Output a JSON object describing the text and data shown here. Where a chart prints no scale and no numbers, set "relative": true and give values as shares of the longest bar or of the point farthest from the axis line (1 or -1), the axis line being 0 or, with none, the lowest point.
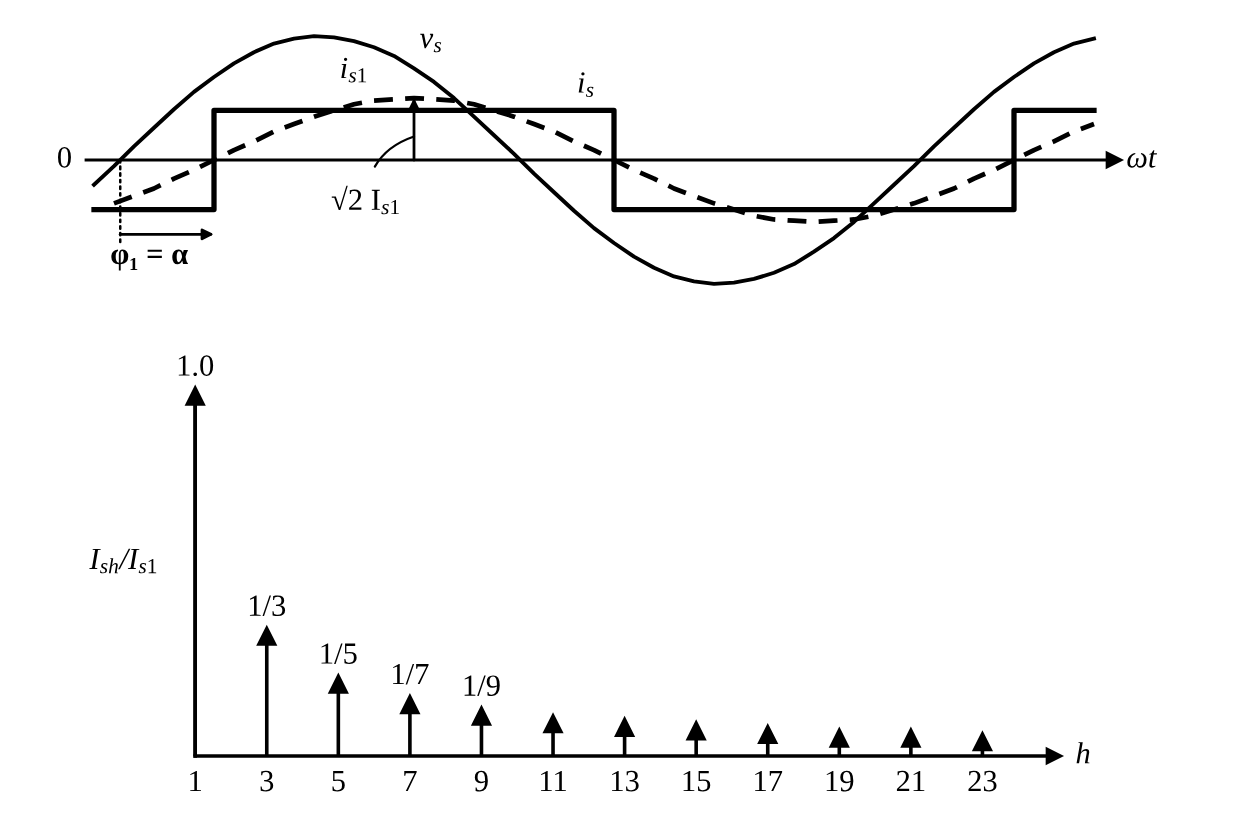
{
  "chart_data": [
    {
      "type": "line",
      "relative": true,
      "xlabel": "ωt",
      "categories": [
        null,
        null,
        null,
        null,
        null,
        null,
        null,
        null,
        null,
        null,
        null,
        null,
        null,
        null,
        null,
        null,
        null,
        null,
        null,
        null,
        null,
        null,
        null,
        null,
        null,
        null,
        null,
        null,
        null,
        null,
        null,
        null,
        null,
        null,
        null,
        null,
        null,
        null,
        null,
        null,
        null,
        null,
        null,
        null,
        null,
        null,
        null,
        null,
        null,
        null,
        null
      ],
      "series": [
        {
          "name": "v$_{s}$",
          "color": "#000000",
          "type": "line",
          "line_style": "solid",
          "values": [
            -0.2,
            -0.05,
            0.11,
            0.26,
            0.41,
            0.55,
            0.67,
            0.78,
            0.87,
            0.94,
            0.98,
            1.0,
            0.99,
            0.96,
            0.91,
            0.84,
            0.74,
            0.63,
            0.5,
            0.35,
            0.2,
            0.05,
            -0.11,
            -0.26,
            -0.41,
            -0.55,
            -0.67,
            -0.78,
            -0.87,
            -0.94,
            -0.98,
            -1.0,
            -0.99,
            -0.96,
            -0.91,
            -0.84,
            -0.74,
            -0.63,
            -0.5,
            -0.35,
            -0.2,
            -0.05,
            0.11,
            0.26,
            0.41,
            0.55,
            0.67,
            0.78,
            0.87,
            0.94,
            0.98
          ]
        },
        {
          "name": "i$_{s1}$",
          "color": "#000000",
          "type": "line",
          "line_style": "dashed",
          "values": [
            null,
            -0.35,
            -0.29,
            -0.23,
            -0.15,
            -0.08,
            0.0,
            0.08,
            0.15,
            0.23,
            0.29,
            0.35,
            0.4,
            0.45,
            0.48,
            0.49,
            0.5,
            0.49,
            0.48,
            0.45,
            0.4,
            0.35,
            0.29,
            0.23,
            0.15,
            0.08,
            0.0,
            -0.08,
            -0.15,
            -0.23,
            -0.29,
            -0.35,
            -0.4,
            -0.45,
            -0.48,
            -0.49,
            -0.5,
            -0.49,
            -0.48,
            -0.45,
            -0.4,
            -0.35,
            -0.29,
            -0.23,
            -0.15,
            -0.08,
            0.0,
            0.08,
            0.15,
            0.23,
            0.29
          ]
        },
        {
          "name": "i$_{s}$",
          "color": "#000000",
          "type": "step",
          "line_style": "solid",
          "values": [
            -0.4,
            -0.4,
            -0.4,
            -0.4,
            -0.4,
            -0.4,
            0.4,
            0.4,
            0.4,
            0.4,
            0.4,
            0.4,
            0.4,
            0.4,
            0.4,
            0.4,
            0.4,
            0.4,
            0.4,
            0.4,
            0.4,
            0.4,
            0.4,
            0.4,
            0.4,
            0.4,
            -0.4,
            -0.4,
            -0.4,
            -0.4,
            -0.4,
            -0.4,
            -0.4,
            -0.4,
            -0.4,
            -0.4,
            -0.4,
            -0.4,
            -0.4,
            -0.4,
            -0.4,
            -0.4,
            -0.4,
            -0.4,
            -0.4,
            -0.4,
            0.4,
            0.4,
            0.4,
            0.4,
            0.4
          ]
        }
      ],
      "annotations": [
        "0",
        {
          "text": "√2 I$_{s1}$",
          "y": 0.5
        },
        "φ₁ = α"
      ]
    },
    {
      "type": "lollipop",
      "x": [
        1,
        3,
        5,
        7,
        9,
        11,
        13,
        15,
        17,
        19,
        21,
        23
      ],
      "values": [
        1.0,
        0.333,
        0.2,
        0.143,
        0.111,
        0.09,
        0.08,
        0.07,
        0.06,
        0.05,
        0.05,
        0.04
      ],
      "value_labels": [
        "1.0",
        "1/3",
        "1/5",
        "1/7",
        "1/9",
        null,
        null,
        null,
        null,
        null,
        null,
        null
      ],
      "color": "#000000",
      "marker": "triangle",
      "xlabel": "h",
      "ylabel": "I$_{sh}$/I$_{s1}$",
      "xlim": [
        1,
        25
      ],
      "xticks": [
        1,
        3,
        5,
        7,
        9,
        11,
        13,
        15,
        17,
        19,
        21,
        23
      ],
      "ylim": [
        0,
        1.0
      ]
    }
  ]
}
